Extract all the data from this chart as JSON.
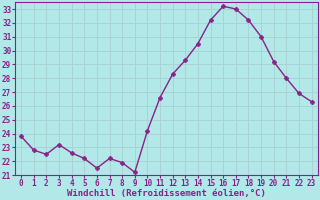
{
  "x": [
    0,
    1,
    2,
    3,
    4,
    5,
    6,
    7,
    8,
    9,
    10,
    11,
    12,
    13,
    14,
    15,
    16,
    17,
    18,
    19,
    20,
    21,
    22,
    23
  ],
  "y": [
    23.8,
    22.8,
    22.5,
    23.2,
    22.6,
    22.2,
    21.5,
    22.2,
    21.9,
    21.2,
    24.2,
    26.6,
    28.3,
    29.3,
    30.5,
    32.2,
    33.2,
    33.0,
    32.2,
    31.0,
    29.2,
    28.0,
    26.9,
    26.3
  ],
  "line_color": "#882288",
  "marker": "P",
  "bg_color": "#b2e8e8",
  "grid_color": "#aad4d4",
  "xlabel": "Windchill (Refroidissement éolien,°C)",
  "ylim": [
    21,
    33.5
  ],
  "xlim": [
    -0.5,
    23.5
  ],
  "yticks": [
    21,
    22,
    23,
    24,
    25,
    26,
    27,
    28,
    29,
    30,
    31,
    32,
    33
  ],
  "xticks": [
    0,
    1,
    2,
    3,
    4,
    5,
    6,
    7,
    8,
    9,
    10,
    11,
    12,
    13,
    14,
    15,
    16,
    17,
    18,
    19,
    20,
    21,
    22,
    23
  ],
  "tick_label_color": "#882288",
  "tick_label_fontsize": 5.5,
  "xlabel_fontsize": 6.5,
  "spine_color": "#882288",
  "line_width": 1.0,
  "marker_size": 3
}
